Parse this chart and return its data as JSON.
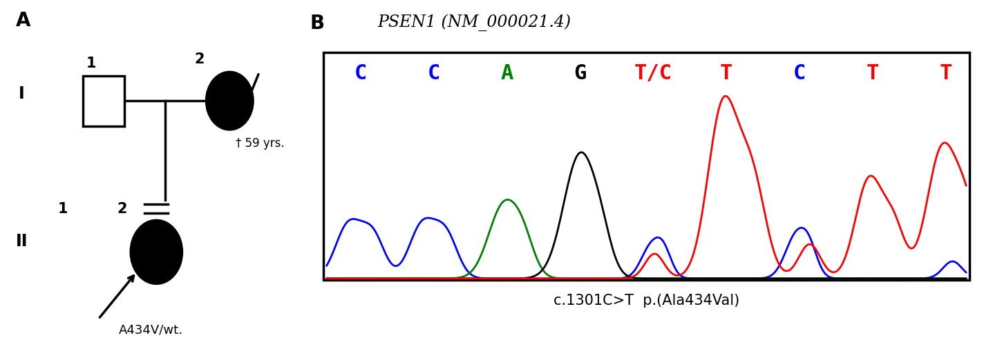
{
  "panel_A_label": "A",
  "panel_B_label": "B",
  "dagger_label": "† 59 yrs.",
  "proband_label": "A434V/wt.",
  "title_italic": "PSEN1 (NM_000021.4)",
  "bases": [
    "C",
    "C",
    "A",
    "G",
    "T/C",
    "T",
    "C",
    "T",
    "T"
  ],
  "base_colors": [
    "blue",
    "blue",
    "green",
    "black",
    "red",
    "red",
    "blue",
    "red",
    "red"
  ],
  "caption": "c.1301C>T  p.(Ala434Val)",
  "bg_color": "white"
}
